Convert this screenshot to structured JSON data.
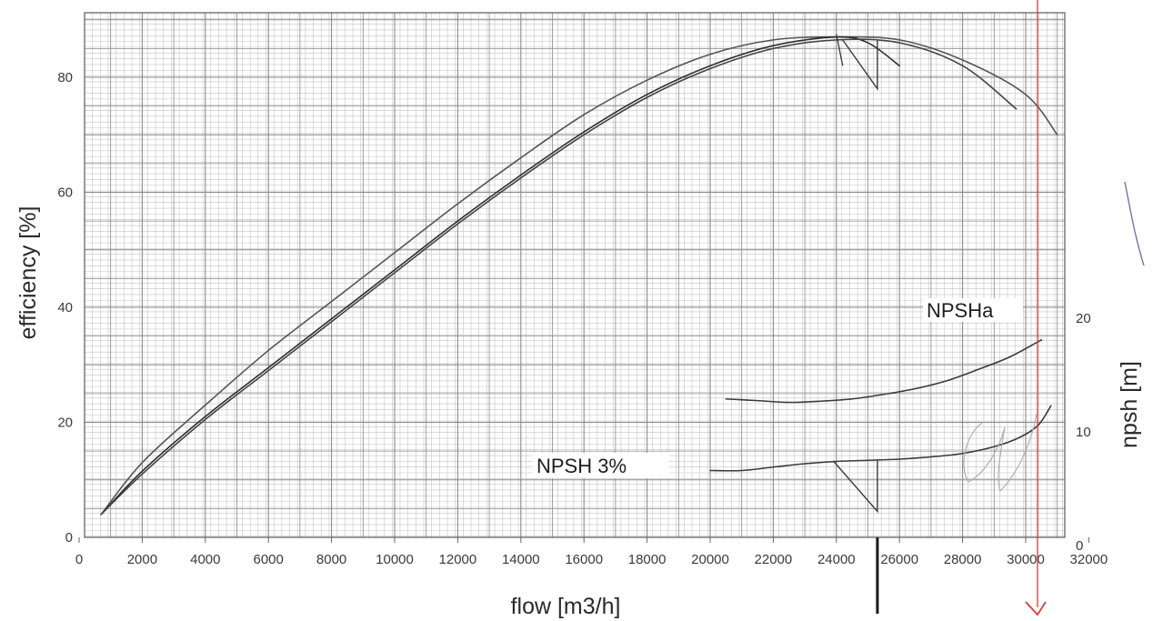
{
  "chart_data": {
    "type": "line",
    "xlabel": "flow [m3/h]",
    "ylabel": "efficiency [%]",
    "y2label": "npsh [m]",
    "xlim": [
      0,
      32000
    ],
    "ylim": [
      0,
      80
    ],
    "y2lim": [
      0,
      20
    ],
    "x_ticks": [
      "0",
      "2000",
      "4000",
      "6000",
      "8000",
      "10000",
      "12000",
      "14000",
      "16000",
      "18000",
      "20000",
      "22000",
      "24000",
      "26000",
      "28000",
      "30000",
      "32000"
    ],
    "y_ticks": [
      "0",
      "20",
      "40",
      "60",
      "80"
    ],
    "y2_ticks": [
      "0",
      "10",
      "20"
    ],
    "grid": true,
    "series": [
      {
        "axis": "left",
        "color": "#555555",
        "points": [
          [
            700,
            4
          ],
          [
            2000,
            13
          ],
          [
            4000,
            23
          ],
          [
            6000,
            32.5
          ],
          [
            8000,
            41
          ],
          [
            10000,
            49.5
          ],
          [
            12000,
            58
          ],
          [
            14000,
            66
          ],
          [
            16000,
            73.5
          ],
          [
            18000,
            79.5
          ],
          [
            20000,
            84
          ],
          [
            22000,
            86.5
          ],
          [
            24000,
            87
          ],
          [
            26000,
            86.5
          ],
          [
            28000,
            83
          ],
          [
            30000,
            77
          ],
          [
            31000,
            70
          ]
        ]
      },
      {
        "axis": "left",
        "color": "#2e2e2e",
        "points": [
          [
            700,
            4
          ],
          [
            2000,
            11.5
          ],
          [
            4000,
            21
          ],
          [
            6000,
            29.5
          ],
          [
            8000,
            38
          ],
          [
            10000,
            46.5
          ],
          [
            12000,
            55
          ],
          [
            14000,
            63
          ],
          [
            16000,
            70.5
          ],
          [
            18000,
            77
          ],
          [
            20000,
            82
          ],
          [
            22000,
            85.5
          ],
          [
            24000,
            87
          ],
          [
            25000,
            86
          ],
          [
            26000,
            82
          ]
        ]
      },
      {
        "axis": "left",
        "color": "#444444",
        "points": [
          [
            700,
            4
          ],
          [
            2000,
            11
          ],
          [
            4000,
            20.5
          ],
          [
            6000,
            29
          ],
          [
            8000,
            37.5
          ],
          [
            10000,
            46
          ],
          [
            12000,
            54.5
          ],
          [
            14000,
            62.5
          ],
          [
            16000,
            70
          ],
          [
            18000,
            76.5
          ],
          [
            20000,
            81.5
          ],
          [
            22000,
            85
          ],
          [
            24000,
            86.5
          ],
          [
            26000,
            86
          ],
          [
            28000,
            82
          ],
          [
            29700,
            74.5
          ]
        ]
      },
      {
        "name": "NPSHa",
        "axis": "right",
        "color": "#3a3a3a",
        "points": [
          [
            20500,
            12.9
          ],
          [
            21500,
            12.75
          ],
          [
            22500,
            12.6
          ],
          [
            23500,
            12.7
          ],
          [
            24500,
            12.9
          ],
          [
            25500,
            13.3
          ],
          [
            26500,
            13.8
          ],
          [
            27500,
            14.5
          ],
          [
            28500,
            15.5
          ],
          [
            29500,
            16.6
          ],
          [
            30500,
            18.1
          ]
        ]
      },
      {
        "name": "NPSH 3%",
        "axis": "right",
        "color": "#3a3a3a",
        "points": [
          [
            20000,
            6.6
          ],
          [
            21000,
            6.6
          ],
          [
            22000,
            6.9
          ],
          [
            23000,
            7.2
          ],
          [
            24000,
            7.4
          ],
          [
            25000,
            7.5
          ],
          [
            26000,
            7.6
          ],
          [
            27000,
            7.8
          ],
          [
            28000,
            8.1
          ],
          [
            29000,
            8.7
          ],
          [
            29800,
            9.5
          ],
          [
            30400,
            10.6
          ],
          [
            30800,
            12.3
          ]
        ]
      }
    ],
    "annotations": [
      "NPSHa",
      "NPSH 3%"
    ]
  }
}
